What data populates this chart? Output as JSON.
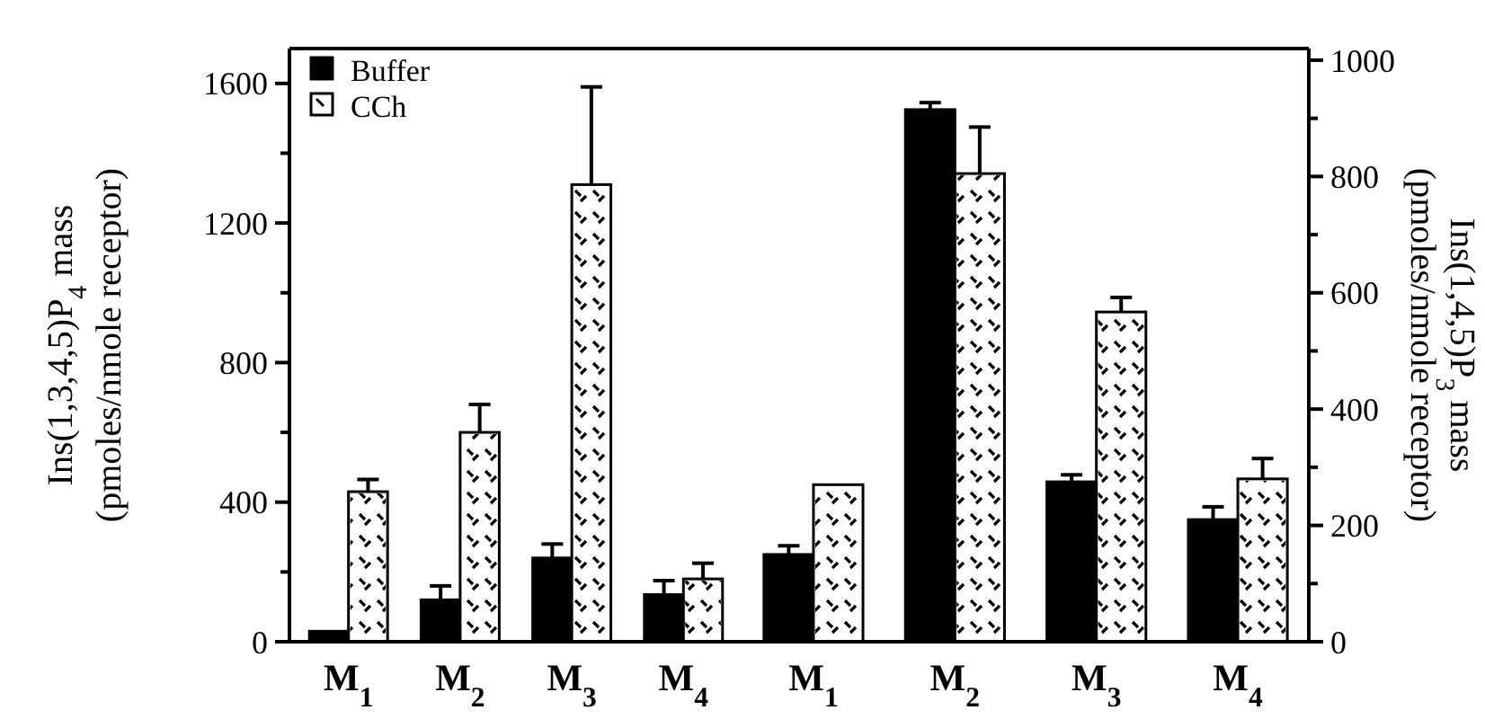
{
  "chart_data": [
    {
      "type": "bar",
      "ylabel": "Ins(1,3,4,5)P$_{4}$ mass\n(pmoles/nmole receptor)",
      "categories": [
        "M$_{1}$",
        "M$_{2}$",
        "M$_{3}$",
        "M$_{4}$"
      ],
      "series": [
        {
          "name": "Buffer",
          "color": "#000000",
          "values": [
            30,
            120,
            240,
            135
          ],
          "errors": [
            null,
            40,
            40,
            40
          ]
        },
        {
          "name": "CCh",
          "color": "#ffffff",
          "values": [
            430,
            600,
            1310,
            180
          ],
          "errors": [
            35,
            80,
            280,
            45
          ]
        }
      ],
      "ylim": [
        0,
        1700
      ],
      "yticks": [
        0,
        {
          "value": 200,
          "label": null
        },
        400,
        {
          "value": 600,
          "label": null
        },
        800,
        {
          "value": 1000,
          "label": null
        },
        1200,
        {
          "value": 1400,
          "label": null
        },
        1600
      ],
      "legend": "top left"
    },
    {
      "type": "bar",
      "y2label": "Ins(1,4,5)P$_{3}$ mass\n(pmoles/nmole receptor)",
      "categories": [
        "M$_{1}$",
        "M$_{2}$",
        "M$_{3}$",
        "M$_{4}$"
      ],
      "series": [
        {
          "color": "#000000",
          "axis": "y2",
          "values": [
            150,
            915,
            275,
            210
          ],
          "errors": [
            15,
            12,
            12,
            22
          ]
        },
        {
          "color": "#ffffff",
          "axis": "y2",
          "values": [
            270,
            805,
            567,
            280
          ],
          "errors": [
            null,
            80,
            25,
            35
          ]
        }
      ],
      "y2lim": [
        0,
        1020
      ],
      "y2ticks": [
        0,
        {
          "value": 100,
          "label": null
        },
        200,
        {
          "value": 300,
          "label": null
        },
        400,
        {
          "value": 500,
          "label": null
        },
        600,
        {
          "value": 700,
          "label": null
        },
        800,
        {
          "value": 900,
          "label": null
        },
        1000
      ],
      "legend": false
    }
  ]
}
